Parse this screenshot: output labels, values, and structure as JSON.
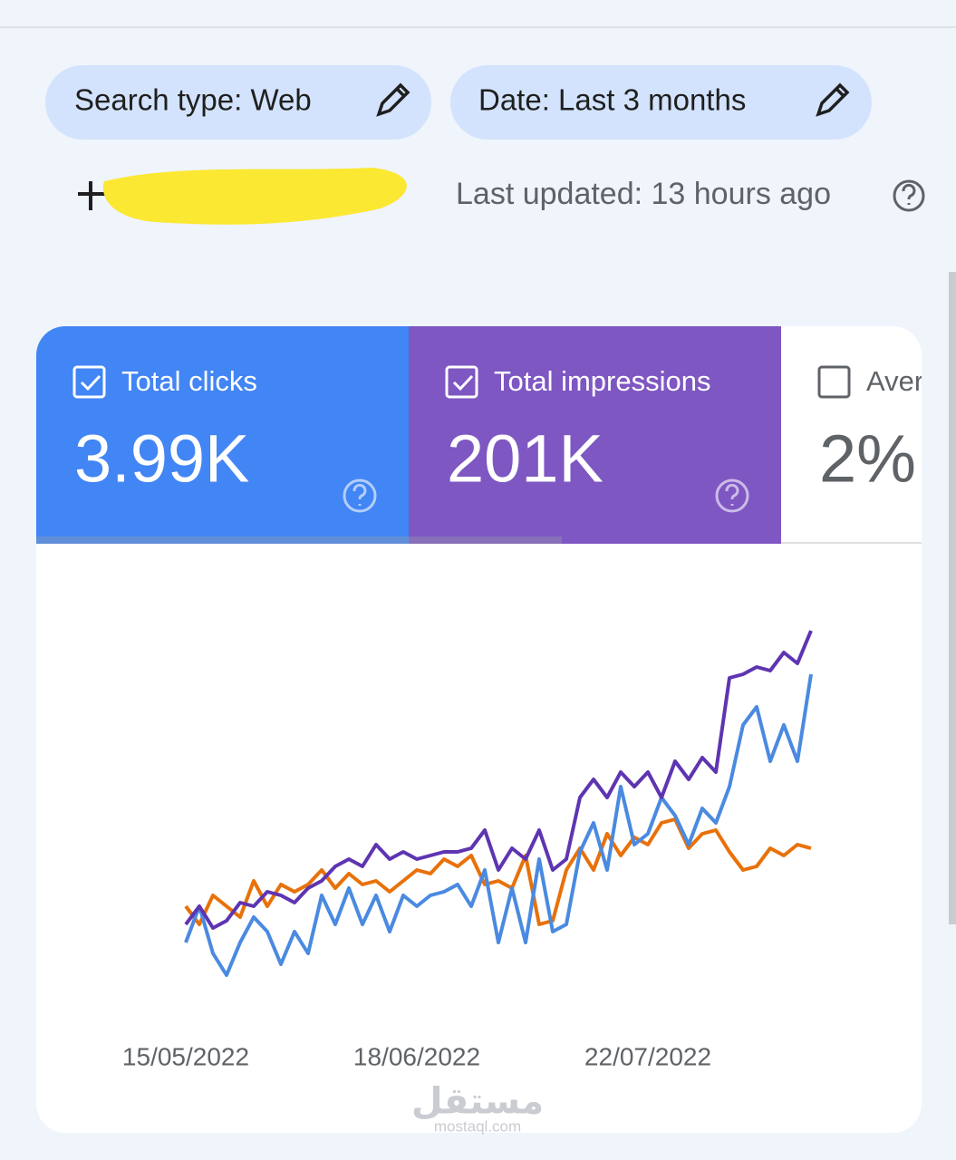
{
  "header": {
    "chips": [
      "Search type: Web",
      "Date: Last 3 months"
    ],
    "last_updated": "Last updated: 13 hours ago"
  },
  "chart_data": {
    "type": "line",
    "categories": [
      "15/05/2022",
      null,
      null,
      null,
      null,
      null,
      null,
      null,
      null,
      null,
      null,
      null,
      null,
      null,
      null,
      null,
      null,
      "18/06/2022",
      null,
      null,
      null,
      null,
      null,
      null,
      null,
      null,
      null,
      null,
      null,
      null,
      null,
      null,
      null,
      null,
      "22/07/2022",
      null,
      null,
      null,
      null,
      null,
      null,
      null,
      null,
      null,
      null,
      null,
      null
    ],
    "ylim": [
      0,
      110
    ],
    "series": [
      {
        "name": "Total clicks",
        "total": "3.99K",
        "checked": true,
        "card_color": "#4285f4",
        "color": "#4a8ae0",
        "values": [
          15,
          25,
          12,
          6,
          15,
          22,
          18,
          9,
          18,
          12,
          28,
          20,
          30,
          20,
          28,
          18,
          28,
          25,
          28,
          29,
          31,
          25,
          35,
          15,
          30,
          15,
          38,
          18,
          20,
          40,
          48,
          35,
          58,
          42,
          45,
          55,
          50,
          42,
          52,
          48,
          58,
          75,
          80,
          65,
          75,
          65,
          89
        ]
      },
      {
        "name": "Total impressions",
        "total": "201K",
        "checked": true,
        "card_color": "#7e57c2",
        "color": "#5e35b1",
        "values": [
          20,
          25,
          19,
          21,
          26,
          25,
          29,
          28,
          26,
          30,
          32,
          36,
          38,
          36,
          42,
          38,
          40,
          38,
          39,
          40,
          40,
          41,
          46,
          35,
          41,
          38,
          46,
          35,
          38,
          55,
          60,
          55,
          62,
          58,
          62,
          55,
          65,
          60,
          66,
          62,
          88,
          89,
          91,
          90,
          95,
          92,
          101
        ]
      },
      {
        "name": "Aver",
        "total": "2%",
        "checked": false,
        "card_color": "#ffffff",
        "color": "#e8710a",
        "values": [
          25,
          20,
          28,
          25,
          22,
          32,
          25,
          31,
          29,
          31,
          35,
          30,
          34,
          31,
          32,
          29,
          32,
          35,
          34,
          38,
          36,
          39,
          31,
          32,
          30,
          39,
          20,
          21,
          35,
          41,
          35,
          45,
          39,
          44,
          42,
          48,
          49,
          41,
          45,
          46,
          40,
          35,
          36,
          41,
          39,
          42,
          41
        ]
      }
    ]
  },
  "watermark": {
    "arabic": "مستقل",
    "site": "mostaql.com"
  }
}
